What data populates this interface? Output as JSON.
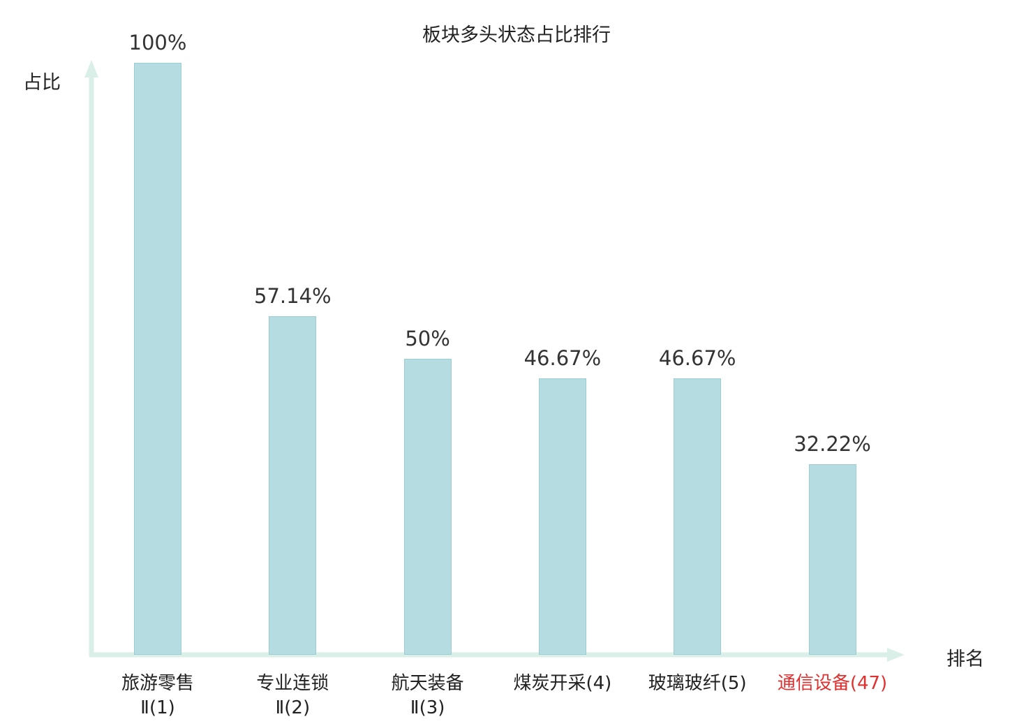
{
  "chart_data": {
    "type": "bar",
    "title": "板块多头状态占比排行",
    "xlabel": "排名",
    "ylabel": "占比",
    "ylim": [
      0,
      100
    ],
    "categories": [
      "旅游零售Ⅱ(1)",
      "专业连锁Ⅱ(2)",
      "航天装备Ⅱ(3)",
      "煤炭开采(4)",
      "玻璃玻纤(5)",
      "通信设备(47)"
    ],
    "category_lines": [
      [
        "旅游零售",
        "Ⅱ(1)"
      ],
      [
        "专业连锁",
        "Ⅱ(2)"
      ],
      [
        "航天装备",
        "Ⅱ(3)"
      ],
      [
        "煤炭开采(4)"
      ],
      [
        "玻璃玻纤(5)"
      ],
      [
        "通信设备(47)"
      ]
    ],
    "values": [
      100,
      57.14,
      50,
      46.67,
      46.67,
      32.22
    ],
    "value_labels": [
      "100%",
      "57.14%",
      "50%",
      "46.67%",
      "46.67%",
      "32.22%"
    ],
    "highlight_index": 5,
    "bar_color": "#b5dde1",
    "bar_border_color": "#9ccdd2",
    "axis_color": "#d9efe8",
    "highlight_color": "#e03131",
    "value_label_color": "#333333",
    "grid": false,
    "legend": false
  }
}
